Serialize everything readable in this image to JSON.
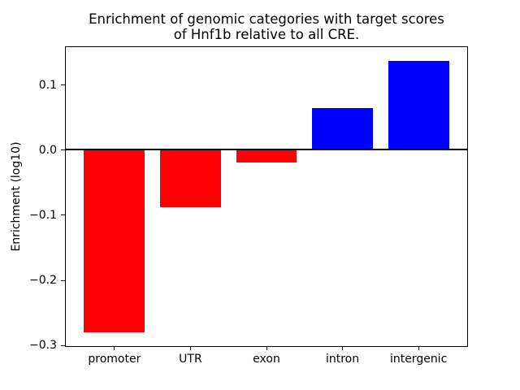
{
  "figure": {
    "background": "#ffffff"
  },
  "chart_data": {
    "type": "bar",
    "title": "Enrichment of genomic categories with target scores\nof Hnf1b relative to all CRE.",
    "xlabel": "",
    "ylabel": "Enrichment (log10)",
    "categories": [
      "promoter",
      "UTR",
      "exon",
      "intron",
      "intergenic"
    ],
    "values": [
      -0.28,
      -0.088,
      -0.019,
      0.064,
      0.137
    ],
    "bar_colors": [
      "#ff0000",
      "#ff0000",
      "#ff0000",
      "#0000ff",
      "#0000ff"
    ],
    "negative_color": "#ff0000",
    "positive_color": "#0000ff",
    "bar_width": 0.8,
    "xlim": [
      -0.64,
      4.64
    ],
    "ylim": [
      -0.301,
      0.158
    ],
    "yticks": [
      -0.3,
      -0.2,
      -0.1,
      0.0,
      0.1
    ],
    "ytick_labels": [
      "−0.3",
      "−0.2",
      "−0.1",
      "0.0",
      "0.1"
    ],
    "grid": false,
    "legend": false,
    "zero_line": true,
    "axis_color": "#000000"
  }
}
